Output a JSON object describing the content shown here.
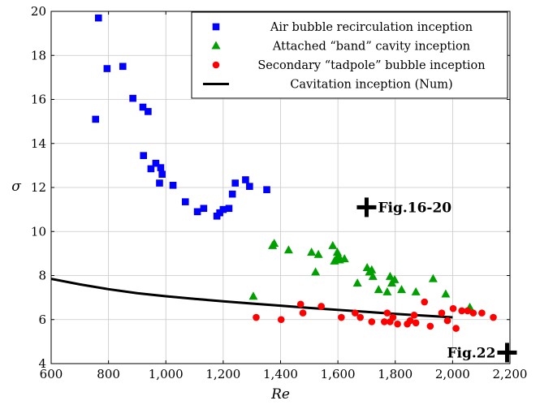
{
  "chart_data": {
    "type": "scatter",
    "xlabel": "Re",
    "ylabel": "σ",
    "xlim": [
      600,
      2200
    ],
    "ylim": [
      4,
      20
    ],
    "x_ticks": [
      600,
      800,
      1000,
      1200,
      1400,
      1600,
      1800,
      2000,
      2200
    ],
    "x_tick_labels": [
      "600",
      "800",
      "1,000",
      "1,200",
      "1,400",
      "1,600",
      "1,800",
      "2,000",
      "2,200"
    ],
    "y_ticks": [
      4,
      6,
      8,
      10,
      12,
      14,
      16,
      18,
      20
    ],
    "y_tick_labels": [
      "4",
      "6",
      "8",
      "10",
      "12",
      "14",
      "16",
      "18",
      "20"
    ],
    "grid": true,
    "legend_position": "top-right",
    "series": [
      {
        "name": "Air bubble recirculation inception",
        "marker": "square",
        "color": "#0000ff",
        "points": [
          [
            755,
            15.1
          ],
          [
            765,
            19.7
          ],
          [
            795,
            17.4
          ],
          [
            850,
            17.5
          ],
          [
            885,
            16.05
          ],
          [
            920,
            15.65
          ],
          [
            938,
            15.45
          ],
          [
            922,
            13.45
          ],
          [
            948,
            12.85
          ],
          [
            965,
            13.1
          ],
          [
            978,
            12.2
          ],
          [
            982,
            12.9
          ],
          [
            987,
            12.6
          ],
          [
            1025,
            12.1
          ],
          [
            1068,
            11.35
          ],
          [
            1110,
            10.9
          ],
          [
            1132,
            11.05
          ],
          [
            1178,
            10.7
          ],
          [
            1188,
            10.85
          ],
          [
            1200,
            11.0
          ],
          [
            1220,
            11.05
          ],
          [
            1232,
            11.7
          ],
          [
            1242,
            12.2
          ],
          [
            1278,
            12.35
          ],
          [
            1292,
            12.05
          ],
          [
            1352,
            11.9
          ]
        ]
      },
      {
        "name": "Attached “band” cavity inception",
        "marker": "triangle",
        "color": "#00a000",
        "points": [
          [
            1305,
            7.05
          ],
          [
            1372,
            9.35
          ],
          [
            1378,
            9.45
          ],
          [
            1428,
            9.15
          ],
          [
            1508,
            9.05
          ],
          [
            1522,
            8.15
          ],
          [
            1532,
            8.95
          ],
          [
            1582,
            9.35
          ],
          [
            1588,
            8.65
          ],
          [
            1594,
            8.75
          ],
          [
            1598,
            9.05
          ],
          [
            1602,
            8.9
          ],
          [
            1606,
            8.7
          ],
          [
            1623,
            8.75
          ],
          [
            1668,
            7.65
          ],
          [
            1702,
            8.35
          ],
          [
            1710,
            8.15
          ],
          [
            1718,
            8.25
          ],
          [
            1722,
            7.95
          ],
          [
            1742,
            7.35
          ],
          [
            1772,
            7.25
          ],
          [
            1782,
            7.95
          ],
          [
            1788,
            7.65
          ],
          [
            1798,
            7.8
          ],
          [
            1822,
            7.35
          ],
          [
            1872,
            7.25
          ],
          [
            1932,
            7.85
          ],
          [
            1976,
            7.15
          ],
          [
            2060,
            6.55
          ]
        ]
      },
      {
        "name": "Secondary “tadpole” bubble inception",
        "marker": "circle",
        "color": "#ff0000",
        "points": [
          [
            1315,
            6.1
          ],
          [
            1402,
            6.0
          ],
          [
            1470,
            6.7
          ],
          [
            1478,
            6.3
          ],
          [
            1542,
            6.6
          ],
          [
            1612,
            6.1
          ],
          [
            1660,
            6.3
          ],
          [
            1678,
            6.1
          ],
          [
            1718,
            5.9
          ],
          [
            1762,
            5.9
          ],
          [
            1772,
            6.3
          ],
          [
            1782,
            5.9
          ],
          [
            1792,
            6.1
          ],
          [
            1808,
            5.8
          ],
          [
            1842,
            5.8
          ],
          [
            1852,
            5.95
          ],
          [
            1866,
            6.2
          ],
          [
            1872,
            5.85
          ],
          [
            1902,
            6.8
          ],
          [
            1922,
            5.7
          ],
          [
            1962,
            6.3
          ],
          [
            1982,
            5.95
          ],
          [
            2002,
            6.5
          ],
          [
            2012,
            5.6
          ],
          [
            2032,
            6.4
          ],
          [
            2052,
            6.4
          ],
          [
            2072,
            6.3
          ],
          [
            2102,
            6.3
          ],
          [
            2142,
            6.1
          ]
        ]
      },
      {
        "name": "Cavitation inception (Num)",
        "marker": "line",
        "color": "#000000",
        "points": [
          [
            600,
            7.85
          ],
          [
            700,
            7.6
          ],
          [
            800,
            7.38
          ],
          [
            900,
            7.2
          ],
          [
            1000,
            7.06
          ],
          [
            1100,
            6.94
          ],
          [
            1200,
            6.83
          ],
          [
            1300,
            6.73
          ],
          [
            1400,
            6.63
          ],
          [
            1500,
            6.53
          ],
          [
            1600,
            6.44
          ],
          [
            1700,
            6.35
          ],
          [
            1800,
            6.26
          ],
          [
            1900,
            6.18
          ],
          [
            2000,
            6.1
          ]
        ]
      }
    ],
    "annotations": [
      {
        "text": "Fig.16-20",
        "x": 1700,
        "y": 11.1
      },
      {
        "text": "Fig.22",
        "x": 2190,
        "y": 4.5
      }
    ]
  }
}
